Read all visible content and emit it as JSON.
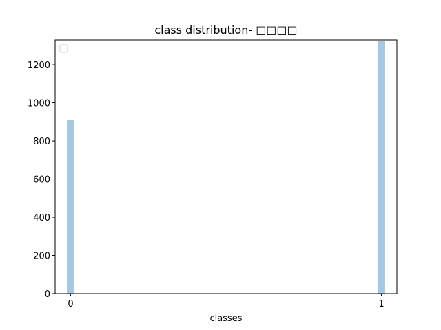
{
  "chart_data": {
    "type": "bar",
    "title": "class distribution- □□□□",
    "xlabel": "classes",
    "ylabel": "",
    "categories": [
      "0",
      "1"
    ],
    "x": [
      0,
      1
    ],
    "values": [
      910,
      1325
    ],
    "x_ticks": [
      "0",
      "1"
    ],
    "y_ticks": [
      "0",
      "200",
      "400",
      "600",
      "800",
      "1000",
      "1200"
    ],
    "xlim": [
      -0.05,
      1.05
    ],
    "ylim": [
      0,
      1330
    ],
    "grid": false,
    "legend": "top-left (empty)",
    "bar_color": "#a6c8e0"
  }
}
